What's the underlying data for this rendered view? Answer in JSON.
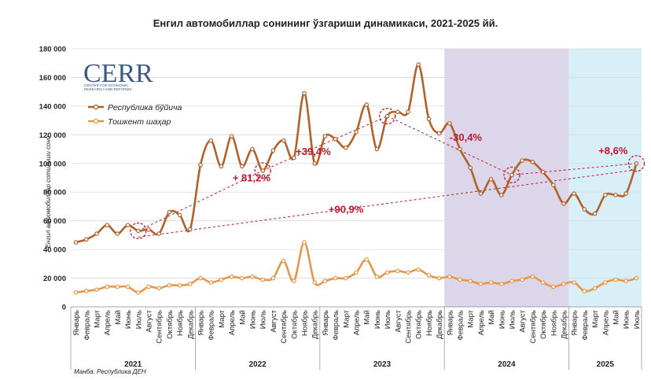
{
  "title": "Енгил автомобиллар сонининг ўзгариши динамикаси, 2021-2025 йй.",
  "source": "Манба: Республика ДЕН",
  "logo": {
    "text": "CERR",
    "subtitle_line1": "CENTER FOR ECONOMIC",
    "subtitle_line2": "RESEARCH AND REFORMS"
  },
  "chart_data": {
    "type": "line",
    "ylabel": "Енгил автомобиллар сотилиши сони",
    "ylim": [
      0,
      180000
    ],
    "yticks": [
      0,
      20000,
      40000,
      60000,
      80000,
      100000,
      120000,
      140000,
      160000,
      180000
    ],
    "ytick_labels": [
      "0",
      "20 000",
      "40 000",
      "60 000",
      "80 000",
      "100 000",
      "120 000",
      "140 000",
      "160 000",
      "180 000"
    ],
    "grid": true,
    "legend_position": "top-left",
    "months": [
      "Январь",
      "Февраль",
      "Март",
      "Апрель",
      "Май",
      "Июнь",
      "Июль",
      "Август",
      "Сентябрь",
      "Октябрь",
      "Ноябрь",
      "Декабрь"
    ],
    "years": [
      {
        "label": "2021",
        "start_month": 0,
        "count": 12
      },
      {
        "label": "2022",
        "start_month": 0,
        "count": 12
      },
      {
        "label": "2023",
        "start_month": 0,
        "count": 12
      },
      {
        "label": "2024",
        "start_month": 0,
        "count": 12
      },
      {
        "label": "2025",
        "start_month": 0,
        "count": 7
      }
    ],
    "shaded_regions": [
      {
        "from_index": 36,
        "to_index": 47,
        "color": "#dcd6ea"
      },
      {
        "from_index": 48,
        "to_index": 54,
        "color": "#d9eff8"
      }
    ],
    "series": [
      {
        "name": "Республика бўйича",
        "color": "#b0622a",
        "values": [
          45000,
          47000,
          51000,
          57000,
          51000,
          57000,
          53000,
          54000,
          51000,
          66000,
          64000,
          54000,
          99000,
          116000,
          98000,
          119000,
          98000,
          110000,
          95000,
          109000,
          116000,
          104000,
          149000,
          100000,
          119000,
          117000,
          111000,
          122000,
          141000,
          110000,
          133000,
          136000,
          136000,
          169000,
          131000,
          121000,
          128000,
          110000,
          97000,
          79000,
          89000,
          78000,
          92000,
          102000,
          101000,
          94000,
          85000,
          72000,
          79000,
          68000,
          65000,
          78000,
          78000,
          79000,
          100000
        ]
      },
      {
        "name": "Тошкент шаҳар",
        "color": "#e8964a",
        "values": [
          10000,
          11000,
          12000,
          14000,
          14000,
          14000,
          10000,
          14000,
          13000,
          15000,
          15000,
          16000,
          20000,
          17000,
          19000,
          21000,
          20000,
          21000,
          19000,
          20000,
          32000,
          18000,
          45000,
          17000,
          18000,
          20000,
          20000,
          24000,
          33000,
          21000,
          24000,
          25000,
          24000,
          26000,
          22000,
          20000,
          21000,
          19000,
          18000,
          16000,
          17000,
          16000,
          18000,
          19000,
          21000,
          17000,
          14000,
          16000,
          17000,
          11000,
          13000,
          17000,
          19000,
          18000,
          20000
        ]
      }
    ],
    "annotations": [
      {
        "text": "+ 81,2%",
        "from_index": 6,
        "to_index": 18
      },
      {
        "text": "+39,4%",
        "from_index": 18,
        "to_index": 30
      },
      {
        "text": "-30,4%",
        "from_index": 30,
        "to_index": 42
      },
      {
        "text": "+8,6%",
        "from_index": 42,
        "to_index": 54
      },
      {
        "text": "+90,9%",
        "from_index": 6,
        "to_index": 54
      }
    ]
  }
}
